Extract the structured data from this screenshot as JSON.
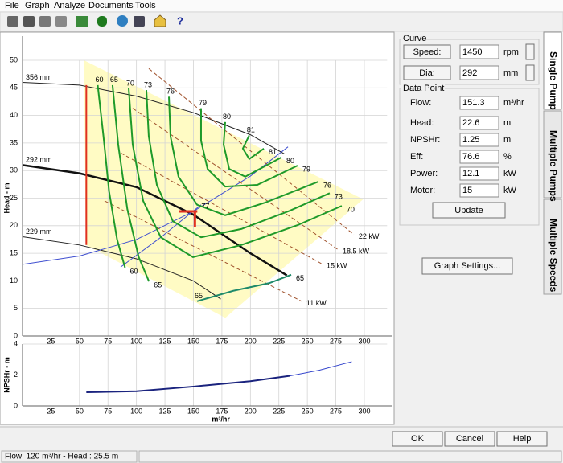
{
  "menu": [
    "File",
    "Graph",
    "Analyze",
    "Documents",
    "Tools"
  ],
  "toolbar": {
    "help": "?"
  },
  "tabs": [
    "Single Pump",
    "Multiple Pumps",
    "Multiple Speeds"
  ],
  "panel": {
    "curve": {
      "title": "Curve",
      "speed_button": "Speed:",
      "speed": "1450",
      "speed_unit": "rpm",
      "dia_button": "Dia:",
      "dia": "292",
      "dia_unit": "mm"
    },
    "data_point": {
      "title": "Data Point",
      "rows": [
        [
          "Flow:",
          "151.3",
          "m³/hr"
        ],
        [
          "Head:",
          "22.6",
          "m"
        ],
        [
          "NPSHr:",
          "1.25",
          "m"
        ],
        [
          "Eff:",
          "76.6",
          "%"
        ],
        [
          "Power:",
          "12.1",
          "kW"
        ],
        [
          "Motor:",
          "15",
          "kW"
        ]
      ]
    },
    "update": "Update",
    "graph_settings": "Graph Settings..."
  },
  "buttons": [
    "OK",
    "Cancel",
    "Help"
  ],
  "status": "Flow: 120 m³/hr - Head : 25.5 m",
  "chart_data": [
    {
      "type": "line",
      "ylabel": "Head - m",
      "xlim": [
        0,
        320
      ],
      "ylim": [
        0,
        50
      ],
      "xticks": [
        25,
        50,
        75,
        100,
        125,
        150,
        175,
        200,
        225,
        250,
        275,
        300
      ],
      "yticks": [
        0,
        5,
        10,
        15,
        20,
        25,
        30,
        35,
        40,
        45,
        50
      ],
      "grid": true,
      "region": {
        "color": "#fffbc4",
        "x": [
          54,
          299,
          178,
          55.5
        ],
        "y": [
          50,
          24.8,
          3.3,
          16.5
        ]
      },
      "min_flow": {
        "color": "#e03020",
        "x": 56,
        "y": [
          16.5,
          45.5
        ]
      },
      "operating_point": {
        "color": "#e03020",
        "x": 151.3,
        "y": 22.6,
        "label": "77"
      },
      "series": [
        {
          "name": "356 mm",
          "kind": "head",
          "color": "#222222",
          "width": 1,
          "x": [
            0,
            50,
            100,
            150,
            200,
            230
          ],
          "values": [
            46,
            45.5,
            43.5,
            40.5,
            36.5,
            33
          ]
        },
        {
          "name": "292 mm",
          "kind": "head",
          "color": "#111111",
          "width": 2.5,
          "x": [
            0,
            50,
            100,
            150,
            200,
            232
          ],
          "values": [
            31,
            29.5,
            27,
            22,
            15,
            11
          ]
        },
        {
          "name": "229 mm",
          "kind": "head",
          "color": "#222222",
          "width": 1,
          "x": [
            0,
            50,
            100,
            150,
            174
          ],
          "values": [
            18,
            16.5,
            14,
            10,
            6.7
          ]
        },
        {
          "kind": "system",
          "color": "#4050d0",
          "width": 1,
          "x": [
            0,
            50,
            100,
            150,
            200,
            233
          ],
          "values": [
            13,
            14.5,
            17.5,
            22.6,
            29,
            34.3
          ]
        },
        {
          "kind": "system",
          "color": "#4050d0",
          "width": 1,
          "x": [
            86.1,
            121.4,
            156.7
          ],
          "values": [
            12.5,
            17.9,
            23.8
          ]
        },
        {
          "name": "22 kW",
          "kind": "power",
          "color": "#a0522d",
          "width": 1,
          "x": [
            110.8,
            290.8
          ],
          "values": [
            48.5,
            18.4
          ]
        },
        {
          "name": "18.5 kW",
          "kind": "power",
          "color": "#a0522d",
          "width": 1,
          "x": [
            96.7,
            276.7
          ],
          "values": [
            41.3,
            15.7
          ]
        },
        {
          "name": "15 kW",
          "kind": "power",
          "color": "#a0522d",
          "width": 1,
          "x": [
            86.1,
            262.6
          ],
          "values": [
            33.2,
            13.1
          ]
        },
        {
          "name": "11 kW",
          "kind": "power",
          "color": "#a0522d",
          "width": 1,
          "x": [
            72,
            244.9
          ],
          "values": [
            24.5,
            6.3
          ]
        },
        {
          "name": "60",
          "kind": "efficiency",
          "color": "#1e9a2a",
          "width": 2,
          "x": [
            66,
            71,
            76,
            83,
            90
          ],
          "values": [
            45.5,
            36.3,
            26.2,
            17.5,
            12.4
          ]
        },
        {
          "name": "65",
          "kind": "efficiency",
          "color": "#1e9a2a",
          "width": 2,
          "x": [
            79,
            84,
            92,
            102,
            111
          ],
          "values": [
            45.5,
            34.7,
            23,
            14.3,
            9.9
          ]
        },
        {
          "name": "70",
          "kind": "efficiency",
          "color": "#1e9a2a",
          "width": 2,
          "x": [
            93.2,
            96.7,
            105.9,
            121.4,
            149.6,
            192,
            241.4,
            280.2
          ],
          "values": [
            44.9,
            34.7,
            24.5,
            17.9,
            14.3,
            16.5,
            20.1,
            23.6
          ]
        },
        {
          "name": "73",
          "kind": "efficiency",
          "color": "#1e9a2a",
          "width": 2,
          "x": [
            108.7,
            110.8,
            117.9,
            132,
            156.7,
            192,
            234.3,
            269.6
          ],
          "values": [
            44.6,
            36.2,
            27.4,
            20.8,
            17.9,
            19.4,
            22.7,
            25.9
          ]
        },
        {
          "name": "76",
          "kind": "efficiency",
          "color": "#1e9a2a",
          "width": 2,
          "x": [
            128.5,
            129.9,
            136.9,
            153.2,
            177.9,
            213.2,
            259.8
          ],
          "values": [
            43.4,
            36.2,
            28.9,
            23.8,
            21.9,
            24.2,
            28
          ]
        },
        {
          "name": "79",
          "kind": "efficiency",
          "color": "#1e9a2a",
          "width": 2,
          "x": [
            156.7,
            156.7,
            162.4,
            177.9,
            206.1,
            241.4
          ],
          "values": [
            41.3,
            35.4,
            30.3,
            27.1,
            27.4,
            30.9
          ]
        },
        {
          "name": "80",
          "kind": "efficiency",
          "color": "#1e9a2a",
          "width": 2,
          "x": [
            177.9,
            176.5,
            181.4,
            195.5,
            227.3
          ],
          "values": [
            38.8,
            34.7,
            30.3,
            28.9,
            32.4
          ]
        },
        {
          "name": "81",
          "kind": "efficiency",
          "color": "#1e9a2a",
          "width": 2,
          "x": [
            199,
            193.4,
            199,
            211.8
          ],
          "values": [
            36.4,
            34,
            32.1,
            34
          ]
        },
        {
          "name": "65",
          "kind": "efficiency",
          "color": "#1e8a6a",
          "width": 2,
          "x": [
            153.2,
            185,
            216.7,
            235.8
          ],
          "values": [
            6.3,
            8.2,
            9.6,
            11.1
          ]
        }
      ]
    },
    {
      "type": "line",
      "ylabel": "NPSHr - m",
      "xlabel": "m³/hr",
      "xlim": [
        0,
        320
      ],
      "ylim": [
        0,
        4
      ],
      "xticks": [
        25,
        50,
        75,
        100,
        125,
        150,
        175,
        200,
        225,
        250,
        275,
        300
      ],
      "yticks": [
        0,
        2,
        4
      ],
      "grid": true,
      "series": [
        {
          "kind": "npsh",
          "color": "#1a237e",
          "width": 2,
          "x": [
            56,
            100,
            150,
            200,
            235
          ],
          "values": [
            0.88,
            0.95,
            1.25,
            1.6,
            1.95
          ]
        },
        {
          "kind": "npsh",
          "color": "#3344cc",
          "width": 1,
          "x": [
            235,
            260,
            289
          ],
          "values": [
            1.95,
            2.3,
            2.86
          ]
        }
      ]
    }
  ]
}
